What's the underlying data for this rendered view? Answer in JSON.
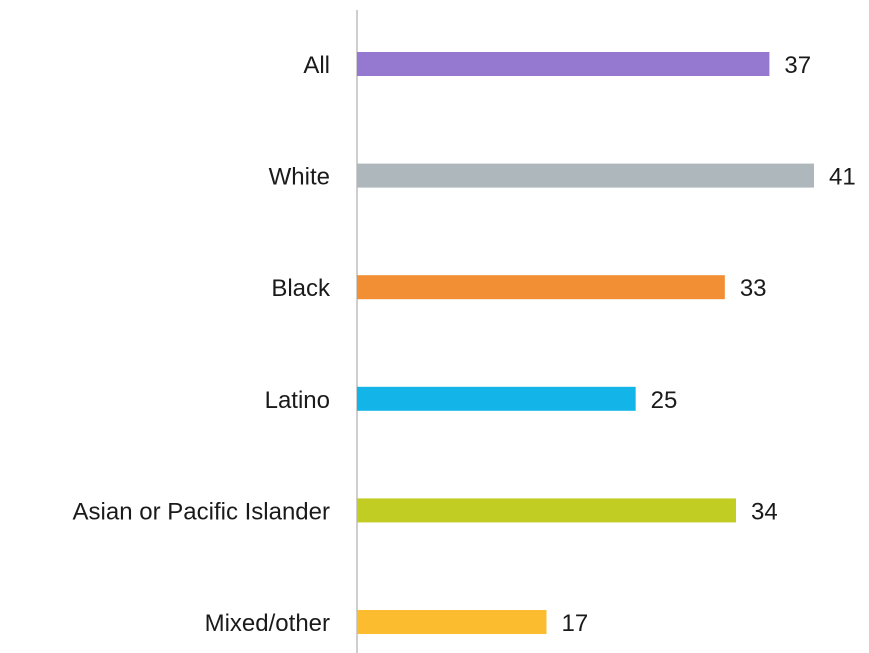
{
  "chart_data": {
    "type": "bar",
    "orientation": "horizontal",
    "categories": [
      "All",
      "White",
      "Black",
      "Latino",
      "Asian or Pacific Islander",
      "Mixed/other"
    ],
    "values": [
      37,
      41,
      33,
      25,
      34,
      17
    ],
    "colors": [
      "#9579d0",
      "#adb7bc",
      "#f28f34",
      "#13b5e8",
      "#c1cd23",
      "#fbbc2f"
    ],
    "title": "",
    "xlabel": "",
    "ylabel": "",
    "xlim": [
      0,
      41
    ],
    "data_labels": true,
    "legend": "none",
    "grid": false
  },
  "style": {
    "axis_color": "#bdbdbd",
    "text_color": "#1a1a1a",
    "background": "#ffffff"
  }
}
